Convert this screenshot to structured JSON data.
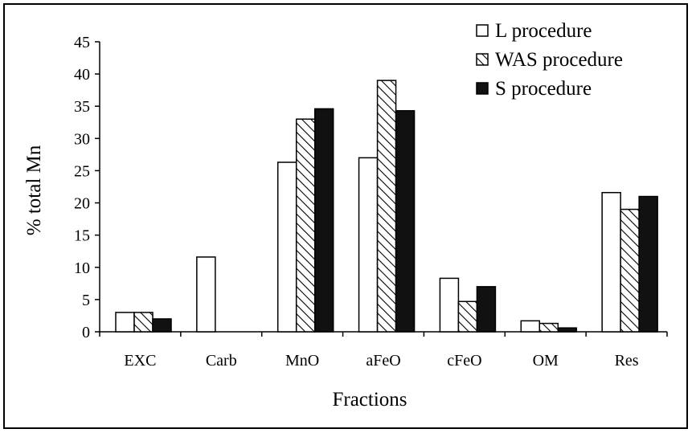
{
  "chart_data": {
    "type": "bar",
    "title": "",
    "xlabel": "Fractions",
    "ylabel": "% total Mn",
    "ylim": [
      0,
      45
    ],
    "ytick_step": 5,
    "grid": false,
    "legend_position": "top-right",
    "categories": [
      "EXC",
      "Carb",
      "MnO",
      "aFeO",
      "cFeO",
      "OM",
      "Res"
    ],
    "series": [
      {
        "name": "L procedure",
        "fill": "white",
        "values": [
          3.0,
          11.6,
          26.3,
          27.0,
          8.3,
          1.7,
          21.6
        ]
      },
      {
        "name": "WAS procedure",
        "fill": "hatched",
        "values": [
          3.0,
          0,
          33.0,
          39.0,
          4.7,
          1.3,
          19.0
        ]
      },
      {
        "name": "S procedure",
        "fill": "black",
        "values": [
          2.0,
          0,
          34.6,
          34.3,
          7.0,
          0.6,
          21.0
        ]
      }
    ]
  }
}
